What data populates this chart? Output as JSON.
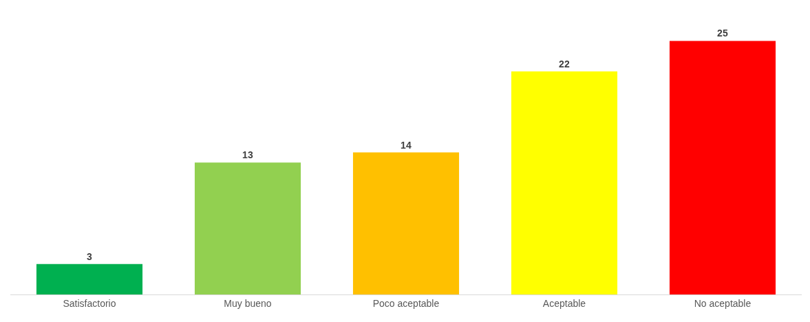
{
  "chart_data": {
    "type": "bar",
    "categories": [
      "Satisfactorio",
      "Muy bueno",
      "Poco aceptable",
      "Aceptable",
      "No aceptable"
    ],
    "values": [
      3,
      13,
      14,
      22,
      25
    ],
    "colors": [
      "#00b050",
      "#92d050",
      "#ffc000",
      "#ffff00",
      "#ff0000"
    ],
    "data_labels": true,
    "legend": false
  }
}
